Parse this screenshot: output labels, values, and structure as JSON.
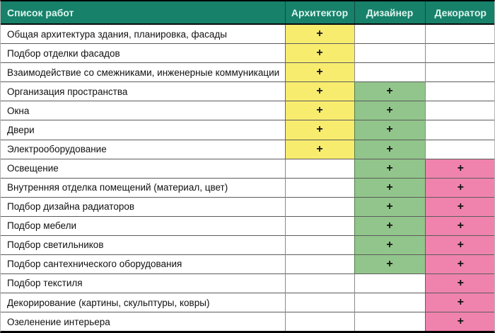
{
  "table": {
    "title": "Список работ",
    "columns": [
      {
        "label": "Список работ"
      },
      {
        "label": "Архитектор"
      },
      {
        "label": "Дизайнер"
      },
      {
        "label": "Декоратор"
      }
    ],
    "plus_mark": "+",
    "colors": {
      "header_bg": "#17816a",
      "header_text": "#ddf5ee",
      "architect": "#f8ec6e",
      "designer": "#92c58b",
      "decorator": "#f083ad"
    },
    "rows": [
      {
        "label": "Общая архитектура здания, планировка, фасады",
        "architect": true,
        "designer": false,
        "decorator": false
      },
      {
        "label": "Подбор отделки фасадов",
        "architect": true,
        "designer": false,
        "decorator": false
      },
      {
        "label": "Взаимодействие со смежниками, инженерные коммуникации",
        "architect": true,
        "designer": false,
        "decorator": false
      },
      {
        "label": "Организация пространства",
        "architect": true,
        "designer": true,
        "decorator": false
      },
      {
        "label": "Окна",
        "architect": true,
        "designer": true,
        "decorator": false
      },
      {
        "label": "Двери",
        "architect": true,
        "designer": true,
        "decorator": false
      },
      {
        "label": "Электрооборудование",
        "architect": true,
        "designer": true,
        "decorator": false
      },
      {
        "label": "Освещение",
        "architect": false,
        "designer": true,
        "decorator": true
      },
      {
        "label": "Внутренняя отделка помещений (материал, цвет)",
        "architect": false,
        "designer": true,
        "decorator": true
      },
      {
        "label": "Подбор дизайна радиаторов",
        "architect": false,
        "designer": true,
        "decorator": true
      },
      {
        "label": "Подбор мебели",
        "architect": false,
        "designer": true,
        "decorator": true
      },
      {
        "label": "Подбор светильников",
        "architect": false,
        "designer": true,
        "decorator": true
      },
      {
        "label": "Подбор сантехнического оборудования",
        "architect": false,
        "designer": true,
        "decorator": true
      },
      {
        "label": "Подбор текстиля",
        "architect": false,
        "designer": false,
        "decorator": true
      },
      {
        "label": "Декорирование (картины, скульптуры, ковры)",
        "architect": false,
        "designer": false,
        "decorator": true
      },
      {
        "label": "Озеленение интерьера",
        "architect": false,
        "designer": false,
        "decorator": true
      }
    ]
  }
}
